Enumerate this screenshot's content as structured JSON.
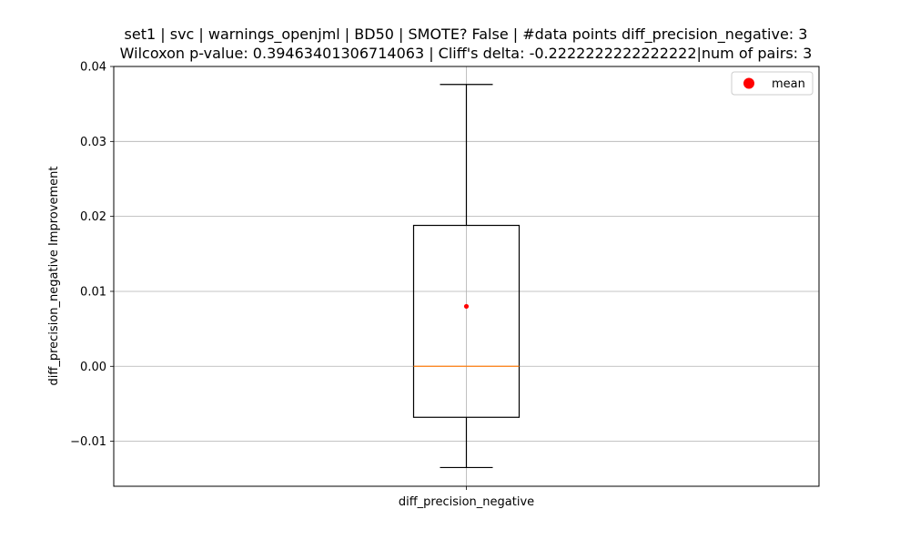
{
  "chart_data": {
    "type": "box",
    "title_line1": "set1 | svc | warnings_openjml | BD50 | SMOTE? False | #data points diff_precision_negative: 3",
    "title_line2": "Wilcoxon p-value: 0.39463401306714063 | Cliff's delta: -0.2222222222222222|num of pairs: 3",
    "xlabel": "",
    "ylabel": "diff_precision_negative Improvement",
    "categories": [
      "diff_precision_negative"
    ],
    "ylim": [
      -0.016,
      0.04
    ],
    "yticks": [
      -0.01,
      0.0,
      0.01,
      0.02,
      0.03,
      0.04
    ],
    "ytick_labels": [
      "−0.01",
      "0.00",
      "0.01",
      "0.02",
      "0.03",
      "0.04"
    ],
    "grid": true,
    "legend_position": "top-right",
    "legend": [
      {
        "label": "mean",
        "marker": "circle",
        "color": "#ff0000"
      }
    ],
    "box": {
      "whisker_low": -0.0135,
      "q1": -0.0068,
      "median": 0.0,
      "q3": 0.0188,
      "whisker_high": 0.0376,
      "mean": 0.008
    },
    "colors": {
      "box": "#000000",
      "median": "#ff7f0e",
      "mean": "#ff0000",
      "grid": "#b0b0b0"
    }
  }
}
